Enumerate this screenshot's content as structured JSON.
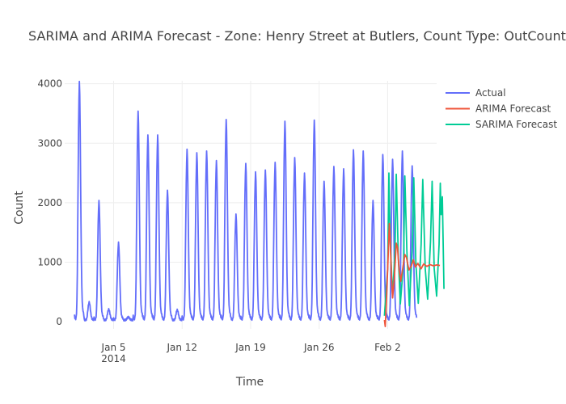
{
  "chart_data": {
    "type": "line",
    "title": "SARIMA and ARIMA Forecast - Zone: Henry Street at Butlers, Count Type: OutCount, M",
    "xlabel": "Time",
    "ylabel": "Count",
    "x_range": [
      "2013-12-31",
      "2014-02-07"
    ],
    "ylim": [
      -120,
      4050
    ],
    "yticks": [
      0,
      1000,
      2000,
      3000,
      4000
    ],
    "xticks": [
      {
        "date": "2014-01-05",
        "label": "Jan 5",
        "sublabel": "2014"
      },
      {
        "date": "2014-01-12",
        "label": "Jan 12",
        "sublabel": ""
      },
      {
        "date": "2014-01-19",
        "label": "Jan 19",
        "sublabel": ""
      },
      {
        "date": "2014-01-26",
        "label": "Jan 26",
        "sublabel": ""
      },
      {
        "date": "2014-02-02",
        "label": "Feb 2",
        "sublabel": ""
      }
    ],
    "grid": true,
    "legend_position": "top-right",
    "series": [
      {
        "name": "Actual",
        "color": "#636efa",
        "period_days": 1,
        "start": "2014-01-01",
        "daily_peaks": [
          4000,
          300,
          2000,
          180,
          1300,
          50,
          3500,
          3100,
          3100,
          2170,
          170,
          2860,
          2800,
          2830,
          2670,
          3360,
          1770,
          2620,
          2480,
          2510,
          2640,
          3330,
          2720,
          2460,
          3350,
          2320,
          2570,
          2530,
          2850,
          2830,
          2000,
          2770,
          2690,
          2830,
          2580
        ]
      },
      {
        "name": "ARIMA Forecast",
        "color": "#ef553b",
        "points": [
          [
            "2014-02-01 16:00",
            30
          ],
          [
            "2014-02-01 18:00",
            -80
          ],
          [
            "2014-02-01 20:00",
            200
          ],
          [
            "2014-02-02 00:00",
            900
          ],
          [
            "2014-02-02 04:00",
            1650
          ],
          [
            "2014-02-02 06:00",
            1400
          ],
          [
            "2014-02-02 09:00",
            800
          ],
          [
            "2014-02-02 12:00",
            400
          ],
          [
            "2014-02-02 16:00",
            700
          ],
          [
            "2014-02-02 21:00",
            1320
          ],
          [
            "2014-02-03 00:00",
            1250
          ],
          [
            "2014-02-03 04:00",
            880
          ],
          [
            "2014-02-03 08:00",
            680
          ],
          [
            "2014-02-03 13:00",
            900
          ],
          [
            "2014-02-03 18:00",
            1130
          ],
          [
            "2014-02-03 22:00",
            1080
          ],
          [
            "2014-02-04 04:00",
            870
          ],
          [
            "2014-02-04 10:00",
            940
          ],
          [
            "2014-02-04 15:00",
            1040
          ],
          [
            "2014-02-04 20:00",
            920
          ],
          [
            "2014-02-05 02:00",
            980
          ],
          [
            "2014-02-05 10:00",
            890
          ],
          [
            "2014-02-05 16:00",
            970
          ],
          [
            "2014-02-06 00:00",
            930
          ],
          [
            "2014-02-06 08:00",
            960
          ],
          [
            "2014-02-06 16:00",
            940
          ],
          [
            "2014-02-07 00:00",
            955
          ],
          [
            "2014-02-07 08:00",
            945
          ]
        ]
      },
      {
        "name": "SARIMA Forecast",
        "color": "#00cc96",
        "points": [
          [
            "2014-02-01 16:00",
            100
          ],
          [
            "2014-02-02 00:00",
            900
          ],
          [
            "2014-02-02 03:00",
            2500
          ],
          [
            "2014-02-02 06:00",
            1400
          ],
          [
            "2014-02-02 12:00",
            420
          ],
          [
            "2014-02-02 18:00",
            1200
          ],
          [
            "2014-02-02 21:00",
            2480
          ],
          [
            "2014-02-03 02:00",
            1100
          ],
          [
            "2014-02-03 07:00",
            300
          ],
          [
            "2014-02-03 15:00",
            1000
          ],
          [
            "2014-02-03 18:00",
            2450
          ],
          [
            "2014-02-03 23:00",
            1200
          ],
          [
            "2014-02-04 05:00",
            270
          ],
          [
            "2014-02-04 12:00",
            1200
          ],
          [
            "2014-02-04 16:00",
            2420
          ],
          [
            "2014-02-04 21:00",
            1000
          ],
          [
            "2014-02-05 03:00",
            310
          ],
          [
            "2014-02-05 10:00",
            1300
          ],
          [
            "2014-02-05 14:00",
            2390
          ],
          [
            "2014-02-05 20:00",
            900
          ],
          [
            "2014-02-06 02:00",
            380
          ],
          [
            "2014-02-06 09:00",
            1350
          ],
          [
            "2014-02-06 13:00",
            2360
          ],
          [
            "2014-02-06 18:00",
            900
          ],
          [
            "2014-02-07 00:00",
            430
          ],
          [
            "2014-02-07 06:00",
            1300
          ],
          [
            "2014-02-07 09:00",
            2330
          ],
          [
            "2014-02-07 11:00",
            1800
          ],
          [
            "2014-02-07 14:00",
            2100
          ],
          [
            "2014-02-07 18:00",
            550
          ]
        ]
      }
    ]
  }
}
